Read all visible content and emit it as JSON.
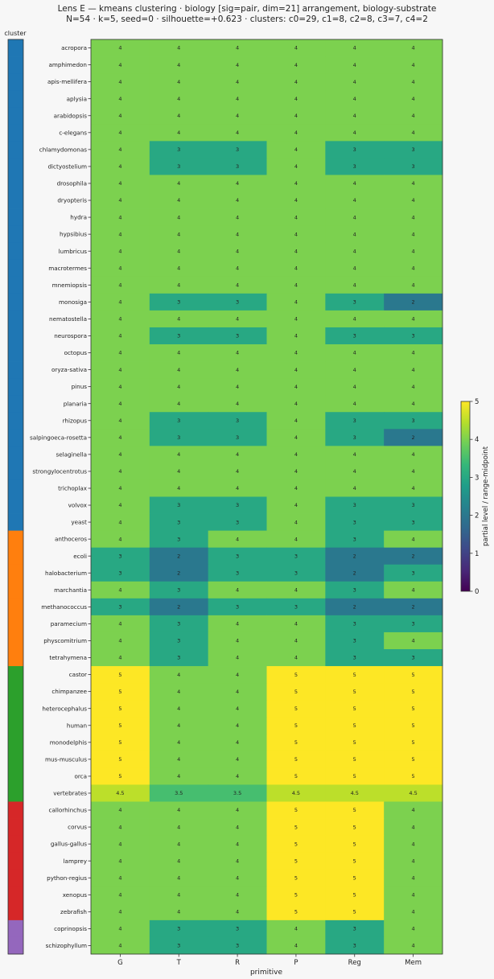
{
  "chart_data": {
    "type": "heatmap",
    "title": "Lens E — kmeans clustering · biology [sig=pair, dim=21] arrangement, biology-substrate",
    "subtitle": "N=54 · k=5, seed=0 · silhouette=+0.623 · clusters: c0=29, c1=8, c2=8, c3=7, c4=2",
    "xlabel": "primitive",
    "cluster_label": "cluster",
    "colorbar_label": "partial level / range-midpoint",
    "colorbar_ticks": [
      "0",
      "1",
      "2",
      "3",
      "4",
      "5"
    ],
    "vmin": 0,
    "vmax": 5,
    "columns": [
      "G",
      "T",
      "R",
      "P",
      "Reg",
      "Mem"
    ],
    "cluster_colors": [
      "#1f77b4",
      "#ff7f0e",
      "#2ca02c",
      "#d62728",
      "#9467bd"
    ],
    "rows": [
      {
        "name": "acropora",
        "cluster": 0,
        "values": [
          4,
          4,
          4,
          4,
          4,
          4
        ],
        "labels": [
          "4",
          "4",
          "4",
          "4",
          "4",
          "4"
        ]
      },
      {
        "name": "amphimedon",
        "cluster": 0,
        "values": [
          4,
          4,
          4,
          4,
          4,
          4
        ],
        "labels": [
          "4",
          "4",
          "4",
          "4",
          "4",
          "4"
        ]
      },
      {
        "name": "apis-mellifera",
        "cluster": 0,
        "values": [
          4,
          4,
          4,
          4,
          4,
          4
        ],
        "labels": [
          "4",
          "4",
          "4",
          "4",
          "4",
          "4"
        ]
      },
      {
        "name": "aplysia",
        "cluster": 0,
        "values": [
          4,
          4,
          4,
          4,
          4,
          4
        ],
        "labels": [
          "4",
          "4",
          "4",
          "4",
          "4",
          "4"
        ]
      },
      {
        "name": "arabidopsis",
        "cluster": 0,
        "values": [
          4,
          4,
          4,
          4,
          4,
          4
        ],
        "labels": [
          "4",
          "4",
          "4",
          "4",
          "4",
          "4"
        ]
      },
      {
        "name": "c-elegans",
        "cluster": 0,
        "values": [
          4,
          4,
          4,
          4,
          4,
          4
        ],
        "labels": [
          "4",
          "4",
          "4",
          "4",
          "4",
          "4"
        ]
      },
      {
        "name": "chlamydomonas",
        "cluster": 0,
        "values": [
          4,
          3,
          3,
          4,
          3,
          3
        ],
        "labels": [
          "4",
          "3",
          "3",
          "4",
          "3",
          "3"
        ]
      },
      {
        "name": "dictyostelium",
        "cluster": 0,
        "values": [
          4,
          3,
          3,
          4,
          3,
          3
        ],
        "labels": [
          "4",
          "3",
          "3",
          "4",
          "3",
          "3"
        ]
      },
      {
        "name": "drosophila",
        "cluster": 0,
        "values": [
          4,
          4,
          4,
          4,
          4,
          4
        ],
        "labels": [
          "4",
          "4",
          "4",
          "4",
          "4",
          "4"
        ]
      },
      {
        "name": "dryopteris",
        "cluster": 0,
        "values": [
          4,
          4,
          4,
          4,
          4,
          4
        ],
        "labels": [
          "4",
          "4",
          "4",
          "4",
          "4",
          "4"
        ]
      },
      {
        "name": "hydra",
        "cluster": 0,
        "values": [
          4,
          4,
          4,
          4,
          4,
          4
        ],
        "labels": [
          "4",
          "4",
          "4",
          "4",
          "4",
          "4"
        ]
      },
      {
        "name": "hypsibius",
        "cluster": 0,
        "values": [
          4,
          4,
          4,
          4,
          4,
          4
        ],
        "labels": [
          "4",
          "4",
          "4",
          "4",
          "4",
          "4"
        ]
      },
      {
        "name": "lumbricus",
        "cluster": 0,
        "values": [
          4,
          4,
          4,
          4,
          4,
          4
        ],
        "labels": [
          "4",
          "4",
          "4",
          "4",
          "4",
          "4"
        ]
      },
      {
        "name": "macrotermes",
        "cluster": 0,
        "values": [
          4,
          4,
          4,
          4,
          4,
          4
        ],
        "labels": [
          "4",
          "4",
          "4",
          "4",
          "4",
          "4"
        ]
      },
      {
        "name": "mnemiopsis",
        "cluster": 0,
        "values": [
          4,
          4,
          4,
          4,
          4,
          4
        ],
        "labels": [
          "4",
          "4",
          "4",
          "4",
          "4",
          "4"
        ]
      },
      {
        "name": "monosiga",
        "cluster": 0,
        "values": [
          4,
          3,
          3,
          4,
          3,
          2
        ],
        "labels": [
          "4",
          "3",
          "3",
          "4",
          "3",
          "2"
        ]
      },
      {
        "name": "nematostella",
        "cluster": 0,
        "values": [
          4,
          4,
          4,
          4,
          4,
          4
        ],
        "labels": [
          "4",
          "4",
          "4",
          "4",
          "4",
          "4"
        ]
      },
      {
        "name": "neurospora",
        "cluster": 0,
        "values": [
          4,
          3,
          3,
          4,
          3,
          3
        ],
        "labels": [
          "4",
          "3",
          "3",
          "4",
          "3",
          "3"
        ]
      },
      {
        "name": "octopus",
        "cluster": 0,
        "values": [
          4,
          4,
          4,
          4,
          4,
          4
        ],
        "labels": [
          "4",
          "4",
          "4",
          "4",
          "4",
          "4"
        ]
      },
      {
        "name": "oryza-sativa",
        "cluster": 0,
        "values": [
          4,
          4,
          4,
          4,
          4,
          4
        ],
        "labels": [
          "4",
          "4",
          "4",
          "4",
          "4",
          "4"
        ]
      },
      {
        "name": "pinus",
        "cluster": 0,
        "values": [
          4,
          4,
          4,
          4,
          4,
          4
        ],
        "labels": [
          "4",
          "4",
          "4",
          "4",
          "4",
          "4"
        ]
      },
      {
        "name": "planaria",
        "cluster": 0,
        "values": [
          4,
          4,
          4,
          4,
          4,
          4
        ],
        "labels": [
          "4",
          "4",
          "4",
          "4",
          "4",
          "4"
        ]
      },
      {
        "name": "rhizopus",
        "cluster": 0,
        "values": [
          4,
          3,
          3,
          4,
          3,
          3
        ],
        "labels": [
          "4",
          "3",
          "3",
          "4",
          "3",
          "3"
        ]
      },
      {
        "name": "salpingoeca-rosetta",
        "cluster": 0,
        "values": [
          4,
          3,
          3,
          4,
          3,
          2
        ],
        "labels": [
          "4",
          "3",
          "3",
          "4",
          "3",
          "2"
        ]
      },
      {
        "name": "selaginella",
        "cluster": 0,
        "values": [
          4,
          4,
          4,
          4,
          4,
          4
        ],
        "labels": [
          "4",
          "4",
          "4",
          "4",
          "4",
          "4"
        ]
      },
      {
        "name": "strongylocentrotus",
        "cluster": 0,
        "values": [
          4,
          4,
          4,
          4,
          4,
          4
        ],
        "labels": [
          "4",
          "4",
          "4",
          "4",
          "4",
          "4"
        ]
      },
      {
        "name": "trichoplax",
        "cluster": 0,
        "values": [
          4,
          4,
          4,
          4,
          4,
          4
        ],
        "labels": [
          "4",
          "4",
          "4",
          "4",
          "4",
          "4"
        ]
      },
      {
        "name": "volvox",
        "cluster": 0,
        "values": [
          4,
          3,
          3,
          4,
          3,
          3
        ],
        "labels": [
          "4",
          "3",
          "3",
          "4",
          "3",
          "3"
        ]
      },
      {
        "name": "yeast",
        "cluster": 0,
        "values": [
          4,
          3,
          3,
          4,
          3,
          3
        ],
        "labels": [
          "4",
          "3",
          "3",
          "4",
          "3",
          "3"
        ]
      },
      {
        "name": "anthoceros",
        "cluster": 1,
        "values": [
          4,
          3,
          4,
          4,
          3,
          4
        ],
        "labels": [
          "4",
          "3",
          "4",
          "4",
          "3",
          "4"
        ]
      },
      {
        "name": "ecoli",
        "cluster": 1,
        "values": [
          3,
          2,
          3,
          3,
          2,
          2
        ],
        "labels": [
          "3",
          "2",
          "3",
          "3",
          "2",
          "2"
        ]
      },
      {
        "name": "halobacterium",
        "cluster": 1,
        "values": [
          3,
          2,
          3,
          3,
          2,
          3
        ],
        "labels": [
          "3",
          "2",
          "3",
          "3",
          "2",
          "3"
        ]
      },
      {
        "name": "marchantia",
        "cluster": 1,
        "values": [
          4,
          3,
          4,
          4,
          3,
          4
        ],
        "labels": [
          "4",
          "3",
          "4",
          "4",
          "3",
          "4"
        ]
      },
      {
        "name": "methanococcus",
        "cluster": 1,
        "values": [
          3,
          2,
          3,
          3,
          2,
          2
        ],
        "labels": [
          "3",
          "2",
          "3",
          "3",
          "2",
          "2"
        ]
      },
      {
        "name": "paramecium",
        "cluster": 1,
        "values": [
          4,
          3,
          4,
          4,
          3,
          3
        ],
        "labels": [
          "4",
          "3",
          "4",
          "4",
          "3",
          "3"
        ]
      },
      {
        "name": "physcomitrium",
        "cluster": 1,
        "values": [
          4,
          3,
          4,
          4,
          3,
          4
        ],
        "labels": [
          "4",
          "3",
          "4",
          "4",
          "3",
          "4"
        ]
      },
      {
        "name": "tetrahymena",
        "cluster": 1,
        "values": [
          4,
          3,
          4,
          4,
          3,
          3
        ],
        "labels": [
          "4",
          "3",
          "4",
          "4",
          "3",
          "3"
        ]
      },
      {
        "name": "castor",
        "cluster": 2,
        "values": [
          5,
          4,
          4,
          5,
          5,
          5
        ],
        "labels": [
          "5",
          "4",
          "4",
          "5",
          "5",
          "5"
        ]
      },
      {
        "name": "chimpanzee",
        "cluster": 2,
        "values": [
          5,
          4,
          4,
          5,
          5,
          5
        ],
        "labels": [
          "5",
          "4",
          "4",
          "5",
          "5",
          "5"
        ]
      },
      {
        "name": "heterocephalus",
        "cluster": 2,
        "values": [
          5,
          4,
          4,
          5,
          5,
          5
        ],
        "labels": [
          "5",
          "4",
          "4",
          "5",
          "5",
          "5"
        ]
      },
      {
        "name": "human",
        "cluster": 2,
        "values": [
          5,
          4,
          4,
          5,
          5,
          5
        ],
        "labels": [
          "5",
          "4",
          "4",
          "5",
          "5",
          "5"
        ]
      },
      {
        "name": "monodelphis",
        "cluster": 2,
        "values": [
          5,
          4,
          4,
          5,
          5,
          5
        ],
        "labels": [
          "5",
          "4",
          "4",
          "5",
          "5",
          "5"
        ]
      },
      {
        "name": "mus-musculus",
        "cluster": 2,
        "values": [
          5,
          4,
          4,
          5,
          5,
          5
        ],
        "labels": [
          "5",
          "4",
          "4",
          "5",
          "5",
          "5"
        ]
      },
      {
        "name": "orca",
        "cluster": 2,
        "values": [
          5,
          4,
          4,
          5,
          5,
          5
        ],
        "labels": [
          "5",
          "4",
          "4",
          "5",
          "5",
          "5"
        ]
      },
      {
        "name": "vertebrates",
        "cluster": 2,
        "values": [
          4.5,
          3.5,
          3.5,
          4.5,
          4.5,
          4.5
        ],
        "labels": [
          "4.5",
          "3.5",
          "3.5",
          "4.5",
          "4.5",
          "4.5"
        ]
      },
      {
        "name": "callorhinchus",
        "cluster": 3,
        "values": [
          4,
          4,
          4,
          5,
          5,
          4
        ],
        "labels": [
          "4",
          "4",
          "4",
          "5",
          "5",
          "4"
        ]
      },
      {
        "name": "corvus",
        "cluster": 3,
        "values": [
          4,
          4,
          4,
          5,
          5,
          4
        ],
        "labels": [
          "4",
          "4",
          "4",
          "5",
          "5",
          "4"
        ]
      },
      {
        "name": "gallus-gallus",
        "cluster": 3,
        "values": [
          4,
          4,
          4,
          5,
          5,
          4
        ],
        "labels": [
          "4",
          "4",
          "4",
          "5",
          "5",
          "4"
        ]
      },
      {
        "name": "lamprey",
        "cluster": 3,
        "values": [
          4,
          4,
          4,
          5,
          5,
          4
        ],
        "labels": [
          "4",
          "4",
          "4",
          "5",
          "5",
          "4"
        ]
      },
      {
        "name": "python-regius",
        "cluster": 3,
        "values": [
          4,
          4,
          4,
          5,
          5,
          4
        ],
        "labels": [
          "4",
          "4",
          "4",
          "5",
          "5",
          "4"
        ]
      },
      {
        "name": "xenopus",
        "cluster": 3,
        "values": [
          4,
          4,
          4,
          5,
          5,
          4
        ],
        "labels": [
          "4",
          "4",
          "4",
          "5",
          "5",
          "4"
        ]
      },
      {
        "name": "zebrafish",
        "cluster": 3,
        "values": [
          4,
          4,
          4,
          5,
          5,
          4
        ],
        "labels": [
          "4",
          "4",
          "4",
          "5",
          "5",
          "4"
        ]
      },
      {
        "name": "coprinopsis",
        "cluster": 4,
        "values": [
          4,
          3,
          3,
          4,
          3,
          4
        ],
        "labels": [
          "4",
          "3",
          "3",
          "4",
          "3",
          "4"
        ]
      },
      {
        "name": "schizophyllum",
        "cluster": 4,
        "values": [
          4,
          3,
          3,
          4,
          3,
          4
        ],
        "labels": [
          "4",
          "3",
          "3",
          "4",
          "3",
          "4"
        ]
      }
    ]
  }
}
